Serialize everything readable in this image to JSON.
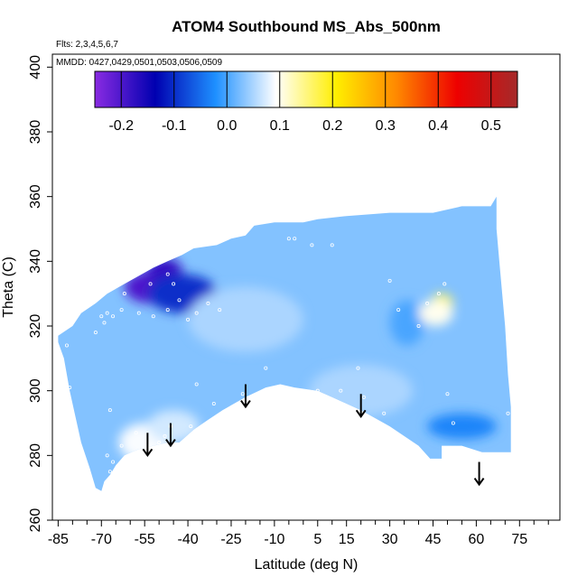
{
  "chart_data": {
    "type": "heatmap",
    "title": "ATOM4 Southbound MS_Abs_500nm",
    "flights_note": "Flts: 2,3,4,5,6,7",
    "dates_note": "MMDD: 0427,0429,0501,0503,0506,0509",
    "xlabel": "Latitude (deg N)",
    "ylabel": "Theta (C)",
    "xlim": [
      -87,
      89
    ],
    "ylim": [
      260,
      404
    ],
    "x_ticks": [
      -85,
      -70,
      -55,
      -40,
      -25,
      -10,
      5,
      15,
      30,
      45,
      60,
      75
    ],
    "x_minor_ticks": [
      -80,
      -75,
      -65,
      -60,
      -50,
      -45,
      -35,
      -30,
      -20,
      -15,
      -5,
      0,
      10,
      20,
      25,
      35,
      40,
      50,
      55,
      65,
      70,
      80,
      85
    ],
    "x_tick_labels": [
      "-85",
      "-70",
      "-55",
      "-40",
      "-25",
      "-10",
      "5",
      "15",
      "30",
      "45",
      "60",
      "75"
    ],
    "y_ticks": [
      260,
      280,
      300,
      320,
      340,
      360,
      380,
      400
    ],
    "y_tick_labels": [
      "260",
      "280",
      "300",
      "320",
      "340",
      "360",
      "380",
      "400"
    ],
    "colorbar": {
      "range": [
        -0.25,
        0.55
      ],
      "ticks": [
        -0.2,
        -0.1,
        0.0,
        0.1,
        0.2,
        0.3,
        0.4,
        0.5
      ],
      "tick_labels": [
        "-0.2",
        "-0.1",
        "0.0",
        "0.1",
        "0.2",
        "0.3",
        "0.4",
        "0.5"
      ],
      "colors": [
        "#8a2be2",
        "#0000b0",
        "#1e90ff",
        "#ffffff",
        "#ffee00",
        "#ff8800",
        "#ee0000",
        "#a52a2a"
      ]
    },
    "field_boundary": [
      [
        -85,
        317
      ],
      [
        -80,
        320
      ],
      [
        -77,
        324
      ],
      [
        -72,
        327
      ],
      [
        -68,
        330
      ],
      [
        -62,
        333
      ],
      [
        -58,
        335
      ],
      [
        -52,
        338
      ],
      [
        -47,
        340
      ],
      [
        -42,
        342
      ],
      [
        -38,
        344
      ],
      [
        -30,
        345
      ],
      [
        -25,
        347
      ],
      [
        -20,
        348
      ],
      [
        -17,
        351
      ],
      [
        -10,
        352
      ],
      [
        0,
        352
      ],
      [
        5,
        353
      ],
      [
        15,
        354
      ],
      [
        30,
        355
      ],
      [
        45,
        355
      ],
      [
        55,
        357
      ],
      [
        65,
        357
      ],
      [
        67,
        360
      ],
      [
        67,
        350
      ],
      [
        68,
        340
      ],
      [
        69,
        330
      ],
      [
        70,
        320
      ],
      [
        71,
        305
      ],
      [
        72,
        295
      ],
      [
        72,
        281
      ],
      [
        62,
        281
      ],
      [
        55,
        283
      ],
      [
        48,
        283
      ],
      [
        48,
        279
      ],
      [
        44,
        279
      ],
      [
        40,
        283
      ],
      [
        30,
        289
      ],
      [
        20,
        294
      ],
      [
        10,
        298
      ],
      [
        5,
        300
      ],
      [
        -3,
        301
      ],
      [
        -8,
        302
      ],
      [
        -13,
        301
      ],
      [
        -20,
        298
      ],
      [
        -28,
        294
      ],
      [
        -33,
        291
      ],
      [
        -38,
        288
      ],
      [
        -43,
        284
      ],
      [
        -47,
        284
      ],
      [
        -52,
        283
      ],
      [
        -57,
        282
      ],
      [
        -62,
        280
      ],
      [
        -65,
        277
      ],
      [
        -67,
        274
      ],
      [
        -69,
        272
      ],
      [
        -70,
        269
      ],
      [
        -72,
        270
      ],
      [
        -74,
        276
      ],
      [
        -77,
        284
      ],
      [
        -79,
        292
      ],
      [
        -81,
        300
      ],
      [
        -83,
        310
      ],
      [
        -85,
        315
      ]
    ],
    "field_base_value": 0.03,
    "features": [
      {
        "x": -53,
        "y": 332,
        "rx": 9,
        "ry": 5,
        "value": -0.2
      },
      {
        "x": -48,
        "y": 337,
        "rx": 6,
        "ry": 4,
        "value": -0.18
      },
      {
        "x": -42,
        "y": 330,
        "rx": 12,
        "ry": 6,
        "value": -0.1
      },
      {
        "x": 36,
        "y": 321,
        "rx": 6,
        "ry": 7,
        "value": 0.0
      },
      {
        "x": 48,
        "y": 327,
        "rx": 4,
        "ry": 3,
        "value": 0.17
      },
      {
        "x": 46,
        "y": 324,
        "rx": 6,
        "ry": 4,
        "value": 0.1
      },
      {
        "x": -55,
        "y": 284,
        "rx": 9,
        "ry": 6,
        "value": 0.09
      },
      {
        "x": -45,
        "y": 289,
        "rx": 9,
        "ry": 5,
        "value": 0.07
      },
      {
        "x": 55,
        "y": 289,
        "rx": 12,
        "ry": 4,
        "value": -0.03
      },
      {
        "x": 20,
        "y": 300,
        "rx": 18,
        "ry": 8,
        "value": 0.05
      },
      {
        "x": -20,
        "y": 322,
        "rx": 20,
        "ry": 10,
        "value": 0.05
      }
    ],
    "sample_points": [
      [
        -82,
        314
      ],
      [
        -81,
        301
      ],
      [
        -72,
        318
      ],
      [
        -70,
        323
      ],
      [
        -69,
        321
      ],
      [
        -68,
        324
      ],
      [
        -66,
        323
      ],
      [
        -63,
        325
      ],
      [
        -62,
        330
      ],
      [
        -57,
        324
      ],
      [
        -52,
        323
      ],
      [
        -47,
        325
      ],
      [
        -43,
        328
      ],
      [
        -40,
        322
      ],
      [
        -37,
        324
      ],
      [
        -33,
        327
      ],
      [
        -29,
        325
      ],
      [
        -45,
        333
      ],
      [
        -47,
        336
      ],
      [
        -53,
        333
      ],
      [
        -37,
        302
      ],
      [
        -31,
        296
      ],
      [
        -21,
        299
      ],
      [
        -13,
        307
      ],
      [
        -5,
        347
      ],
      [
        -3,
        347
      ],
      [
        3,
        345
      ],
      [
        10,
        345
      ],
      [
        5,
        300
      ],
      [
        13,
        300
      ],
      [
        19,
        307
      ],
      [
        21,
        298
      ],
      [
        28,
        293
      ],
      [
        30,
        334
      ],
      [
        33,
        325
      ],
      [
        40,
        320
      ],
      [
        43,
        327
      ],
      [
        47,
        330
      ],
      [
        49,
        333
      ],
      [
        50,
        299
      ],
      [
        52,
        290
      ],
      [
        71,
        280
      ],
      [
        71,
        293
      ],
      [
        -67,
        275
      ],
      [
        -66,
        278
      ],
      [
        -64,
        275
      ],
      [
        -68,
        280
      ],
      [
        -63,
        283
      ],
      [
        -57,
        281
      ],
      [
        -54,
        283
      ],
      [
        -50,
        284
      ],
      [
        -48,
        286
      ],
      [
        -46,
        289
      ],
      [
        -39,
        289
      ],
      [
        -58,
        287
      ],
      [
        -67,
        294
      ]
    ],
    "arrows": [
      {
        "x": -54,
        "y_top": 287,
        "y_tip": 280
      },
      {
        "x": -46,
        "y_top": 290,
        "y_tip": 283
      },
      {
        "x": -20,
        "y_top": 302,
        "y_tip": 295
      },
      {
        "x": 20,
        "y_top": 299,
        "y_tip": 292
      },
      {
        "x": 61,
        "y_top": 278,
        "y_tip": 271
      }
    ]
  }
}
